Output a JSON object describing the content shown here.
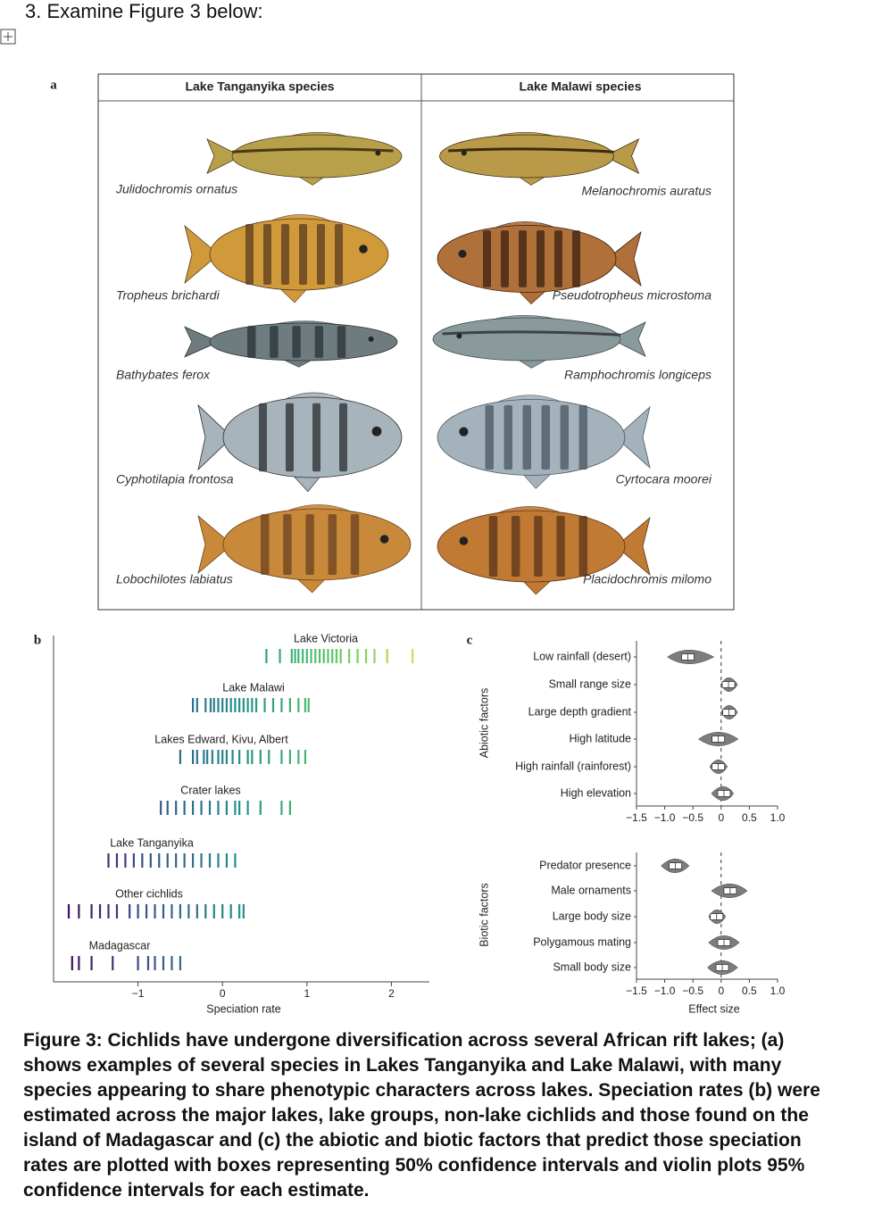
{
  "question": "3. Examine Figure 3 below:",
  "panel_a": {
    "label": "a",
    "columns": [
      {
        "title": "Lake Tanganyika species",
        "species": [
          "Julidochromis ornatus",
          "Tropheus brichardi",
          "Bathybates ferox",
          "Cyphotilapia frontosa",
          "Lobochilotes labiatus"
        ]
      },
      {
        "title": "Lake Malawi species",
        "species": [
          "Melanochromis auratus",
          "Pseudotropheus microstoma",
          "Ramphochromis longiceps",
          "Cyrtocara moorei",
          "Placidochromis milomo"
        ]
      }
    ]
  },
  "panel_b": {
    "label": "b",
    "xlabel": "Speciation rate",
    "xlim": [
      -2,
      2.45
    ],
    "xticks": [
      {
        "value": -1,
        "label": "−1"
      },
      0,
      1,
      2
    ],
    "groups": [
      {
        "name": "Lake Victoria",
        "rates": [
          0.52,
          0.68,
          0.82,
          0.86,
          0.9,
          0.95,
          1.0,
          1.05,
          1.1,
          1.15,
          1.2,
          1.25,
          1.3,
          1.35,
          1.4,
          1.5,
          1.6,
          1.7,
          1.8,
          1.95,
          2.25
        ]
      },
      {
        "name": "Lake Malawi",
        "rates": [
          -0.35,
          -0.3,
          -0.2,
          -0.14,
          -0.1,
          -0.05,
          0,
          0.05,
          0.1,
          0.15,
          0.2,
          0.25,
          0.3,
          0.35,
          0.4,
          0.5,
          0.6,
          0.7,
          0.8,
          0.9,
          0.98,
          1.02
        ]
      },
      {
        "name": "Lakes Edward, Kivu, Albert",
        "rates": [
          -0.5,
          -0.35,
          -0.3,
          -0.22,
          -0.18,
          -0.12,
          -0.05,
          0,
          0.05,
          0.12,
          0.2,
          0.3,
          0.35,
          0.45,
          0.55,
          0.7,
          0.8,
          0.9,
          0.98
        ]
      },
      {
        "name": "Crater lakes",
        "rates": [
          -0.73,
          -0.65,
          -0.55,
          -0.45,
          -0.35,
          -0.25,
          -0.15,
          -0.05,
          0.05,
          0.15,
          0.2,
          0.3,
          0.45,
          0.7,
          0.8
        ]
      },
      {
        "name": "Lake Tanganyika",
        "rates": [
          -1.35,
          -1.25,
          -1.15,
          -1.05,
          -0.95,
          -0.85,
          -0.75,
          -0.65,
          -0.55,
          -0.45,
          -0.35,
          -0.25,
          -0.15,
          -0.05,
          0.05,
          0.15
        ]
      },
      {
        "name": "Other cichlids",
        "rates": [
          -1.82,
          -1.7,
          -1.55,
          -1.45,
          -1.35,
          -1.25,
          -1.1,
          -1.0,
          -0.9,
          -0.8,
          -0.7,
          -0.6,
          -0.5,
          -0.4,
          -0.3,
          -0.2,
          -0.1,
          0,
          0.1,
          0.2,
          0.25
        ]
      },
      {
        "name": "Madagascar",
        "rates": [
          -1.78,
          -1.7,
          -1.55,
          -1.3,
          -1.0,
          -0.88,
          -0.8,
          -0.7,
          -0.6,
          -0.5
        ]
      }
    ]
  },
  "panel_c": {
    "label": "c",
    "xlabel": "Effect size",
    "xlim": [
      -1.5,
      1.0
    ],
    "xticks": [
      {
        "value": -1.5,
        "label": "−1.5"
      },
      {
        "value": -1.0,
        "label": "−1.0"
      },
      {
        "value": -0.5,
        "label": "−0.5"
      },
      0,
      0.5,
      {
        "value": 1.0,
        "label": "1.0"
      }
    ],
    "groups": [
      {
        "name": "Abiotic factors",
        "factors": [
          {
            "name": "Low rainfall (desert)",
            "estimate": -0.59,
            "ci95": [
              -0.95,
              -0.13
            ]
          },
          {
            "name": "Small range size",
            "estimate": 0.13,
            "ci95": [
              0,
              0.29
            ]
          },
          {
            "name": "Large depth gradient",
            "estimate": 0.14,
            "ci95": [
              0,
              0.29
            ]
          },
          {
            "name": "High latitude",
            "estimate": -0.05,
            "ci95": [
              -0.4,
              0.3
            ]
          },
          {
            "name": "High rainfall (rainforest)",
            "estimate": -0.05,
            "ci95": [
              -0.2,
              0.11
            ]
          },
          {
            "name": "High elevation",
            "estimate": 0.05,
            "ci95": [
              -0.17,
              0.22
            ]
          }
        ]
      },
      {
        "name": "Biotic factors",
        "factors": [
          {
            "name": "Predator presence",
            "estimate": -0.81,
            "ci95": [
              -1.06,
              -0.57
            ]
          },
          {
            "name": "Male ornaments",
            "estimate": 0.16,
            "ci95": [
              -0.17,
              0.46
            ]
          },
          {
            "name": "Large body size",
            "estimate": -0.08,
            "ci95": [
              -0.22,
              0.08
            ]
          },
          {
            "name": "Polygamous mating",
            "estimate": 0.05,
            "ci95": [
              -0.22,
              0.32
            ]
          },
          {
            "name": "Small body size",
            "estimate": 0.02,
            "ci95": [
              -0.24,
              0.29
            ]
          }
        ]
      }
    ]
  },
  "caption": "Figure 3: Cichlids have undergone diversification across several African rift lakes; (a) shows examples of several species in Lakes Tanganyika and Lake Malawi, with many species appearing to share phenotypic characters across lakes. Speciation rates (b) were estimated across the major lakes, lake groups, non-lake cichlids and those found on the island of Madagascar and (c) the abiotic and biotic factors that predict those speciation rates are plotted with boxes representing 50% confidence intervals and violin plots 95% confidence intervals for each estimate."
}
